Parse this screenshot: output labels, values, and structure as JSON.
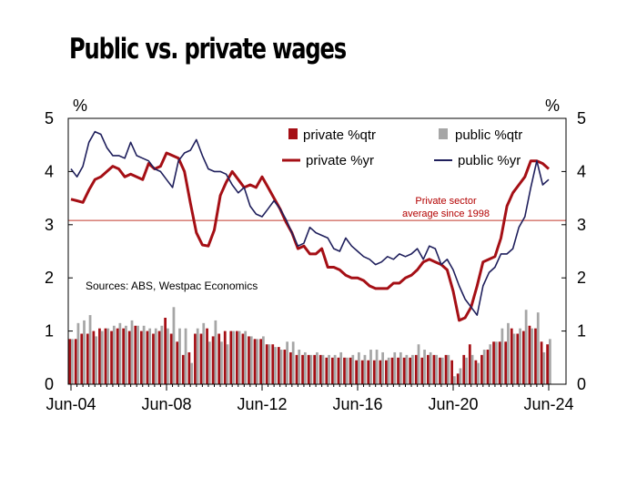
{
  "title": "Public vs. private wages",
  "chart_data": {
    "type": "bar+line",
    "y_unit_label": "%",
    "ylim": [
      0,
      5
    ],
    "yticks": [
      "0",
      "1",
      "2",
      "3",
      "4",
      "5"
    ],
    "xtick_labels": [
      "Jun-04",
      "Jun-08",
      "Jun-12",
      "Jun-16",
      "Jun-20",
      "Jun-24"
    ],
    "grid": false,
    "legend_position": "top-right",
    "colors": {
      "private": "#a50f15",
      "public_bar": "#a6a6a6",
      "public_line": "#1f1f5c",
      "refline": "#c0392b"
    },
    "reference_line": {
      "value": 3.08,
      "label_line1": "Private sector",
      "label_line2": "average since 1998"
    },
    "source": "Sources: ABS, Westpac Economics",
    "legend": [
      {
        "label": "private %qtr"
      },
      {
        "label": "public %qtr"
      },
      {
        "label": "private %yr"
      },
      {
        "label": "public %yr"
      }
    ],
    "x_quarters": [
      "Jun-04",
      "Sep-04",
      "Dec-04",
      "Mar-05",
      "Jun-05",
      "Sep-05",
      "Dec-05",
      "Mar-06",
      "Jun-06",
      "Sep-06",
      "Dec-06",
      "Mar-07",
      "Jun-07",
      "Sep-07",
      "Dec-07",
      "Mar-08",
      "Jun-08",
      "Sep-08",
      "Dec-08",
      "Mar-09",
      "Jun-09",
      "Sep-09",
      "Dec-09",
      "Mar-10",
      "Jun-10",
      "Sep-10",
      "Dec-10",
      "Mar-11",
      "Jun-11",
      "Sep-11",
      "Dec-11",
      "Mar-12",
      "Jun-12",
      "Sep-12",
      "Dec-12",
      "Mar-13",
      "Jun-13",
      "Sep-13",
      "Dec-13",
      "Mar-14",
      "Jun-14",
      "Sep-14",
      "Dec-14",
      "Mar-15",
      "Jun-15",
      "Sep-15",
      "Dec-15",
      "Mar-16",
      "Jun-16",
      "Sep-16",
      "Dec-16",
      "Mar-17",
      "Jun-17",
      "Sep-17",
      "Dec-17",
      "Mar-18",
      "Jun-18",
      "Sep-18",
      "Dec-18",
      "Mar-19",
      "Jun-19",
      "Sep-19",
      "Dec-19",
      "Mar-20",
      "Jun-20",
      "Sep-20",
      "Dec-20",
      "Mar-21",
      "Jun-21",
      "Sep-21",
      "Dec-21",
      "Mar-22",
      "Jun-22",
      "Sep-22",
      "Dec-22",
      "Mar-23",
      "Jun-23",
      "Sep-23",
      "Dec-23",
      "Mar-24",
      "Jun-24"
    ],
    "series": [
      {
        "name": "private %qtr",
        "kind": "bar",
        "values": [
          0.85,
          0.85,
          0.95,
          0.95,
          1.0,
          1.05,
          1.05,
          1.0,
          1.05,
          1.05,
          1.0,
          1.1,
          1.0,
          1.0,
          0.95,
          1.0,
          1.25,
          0.95,
          0.8,
          0.55,
          0.6,
          0.95,
          0.95,
          1.05,
          0.9,
          0.95,
          1.0,
          1.0,
          1.0,
          0.95,
          0.9,
          0.85,
          0.85,
          0.75,
          0.75,
          0.7,
          0.65,
          0.6,
          0.55,
          0.55,
          0.55,
          0.55,
          0.55,
          0.5,
          0.5,
          0.5,
          0.5,
          0.5,
          0.45,
          0.45,
          0.45,
          0.45,
          0.45,
          0.45,
          0.5,
          0.5,
          0.5,
          0.5,
          0.55,
          0.5,
          0.55,
          0.55,
          0.5,
          0.55,
          0.45,
          0.2,
          0.55,
          0.75,
          0.45,
          0.55,
          0.65,
          0.8,
          0.8,
          0.8,
          1.05,
          0.95,
          1.0,
          1.1,
          1.05,
          0.8,
          0.75
        ]
      },
      {
        "name": "public %qtr",
        "kind": "bar",
        "values": [
          0.85,
          1.15,
          1.2,
          1.3,
          0.9,
          1.0,
          1.05,
          1.1,
          1.15,
          1.1,
          1.2,
          1.1,
          1.1,
          1.05,
          1.05,
          1.1,
          1.05,
          1.45,
          1.05,
          1.05,
          0.4,
          1.05,
          1.15,
          0.8,
          1.2,
          0.8,
          0.75,
          1.0,
          1.0,
          1.0,
          0.9,
          0.85,
          0.9,
          0.75,
          0.7,
          0.65,
          0.8,
          0.8,
          0.65,
          0.6,
          0.55,
          0.6,
          0.55,
          0.55,
          0.55,
          0.6,
          0.5,
          0.55,
          0.6,
          0.55,
          0.65,
          0.65,
          0.6,
          0.5,
          0.6,
          0.6,
          0.55,
          0.55,
          0.75,
          0.65,
          0.6,
          0.55,
          0.5,
          0.55,
          0.15,
          0.3,
          0.5,
          0.55,
          0.4,
          0.65,
          0.75,
          0.8,
          1.05,
          1.15,
          0.95,
          1.05,
          1.4,
          1.05,
          1.35,
          0.6,
          0.85
        ]
      },
      {
        "name": "private %yr",
        "kind": "line",
        "values": [
          3.48,
          3.45,
          3.42,
          3.65,
          3.85,
          3.9,
          4.0,
          4.1,
          4.05,
          3.9,
          3.95,
          3.9,
          3.85,
          4.15,
          4.05,
          4.1,
          4.35,
          4.3,
          4.25,
          4.0,
          3.4,
          2.85,
          2.62,
          2.6,
          2.9,
          3.55,
          3.8,
          4.0,
          3.85,
          3.7,
          3.75,
          3.7,
          3.9,
          3.7,
          3.5,
          3.3,
          3.05,
          2.85,
          2.55,
          2.6,
          2.45,
          2.45,
          2.55,
          2.2,
          2.2,
          2.15,
          2.05,
          2.0,
          2.0,
          1.95,
          1.85,
          1.8,
          1.8,
          1.8,
          1.9,
          1.9,
          2.0,
          2.05,
          2.15,
          2.3,
          2.35,
          2.3,
          2.25,
          2.15,
          1.75,
          1.2,
          1.25,
          1.45,
          1.85,
          2.3,
          2.35,
          2.4,
          2.75,
          3.35,
          3.6,
          3.75,
          3.9,
          4.2,
          4.2,
          4.15,
          4.05
        ]
      },
      {
        "name": "public %yr",
        "kind": "line",
        "values": [
          4.05,
          3.9,
          4.1,
          4.55,
          4.75,
          4.7,
          4.45,
          4.3,
          4.3,
          4.25,
          4.55,
          4.3,
          4.25,
          4.2,
          4.05,
          4.0,
          3.85,
          3.7,
          4.2,
          4.35,
          4.4,
          4.6,
          4.3,
          4.05,
          4.0,
          4.0,
          3.95,
          3.75,
          3.6,
          3.7,
          3.35,
          3.2,
          3.15,
          3.3,
          3.45,
          3.3,
          3.1,
          2.85,
          2.6,
          2.65,
          2.95,
          2.85,
          2.8,
          2.75,
          2.55,
          2.5,
          2.75,
          2.6,
          2.5,
          2.4,
          2.35,
          2.25,
          2.3,
          2.4,
          2.35,
          2.45,
          2.4,
          2.45,
          2.55,
          2.35,
          2.6,
          2.55,
          2.25,
          2.35,
          2.15,
          1.85,
          1.6,
          1.45,
          1.3,
          1.85,
          2.1,
          2.2,
          2.45,
          2.45,
          2.55,
          2.95,
          3.15,
          3.7,
          4.2,
          3.75,
          3.85
        ]
      }
    ]
  }
}
